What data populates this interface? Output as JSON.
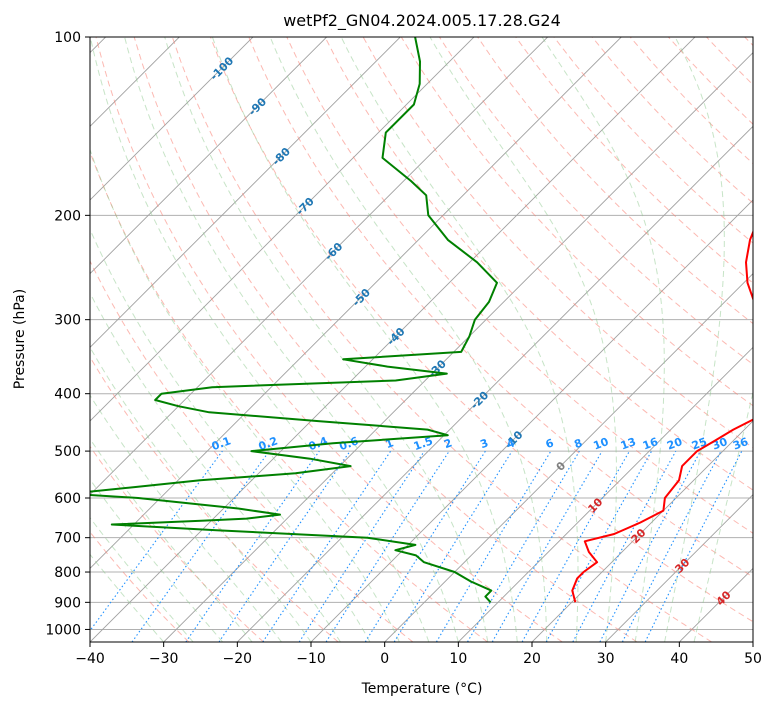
{
  "chart_data": {
    "type": "line",
    "title": "wetPf2_GN04.2024.005.17.28.G24",
    "xlabel": "Temperature (°C)",
    "ylabel": "Pressure (hPa)",
    "xlim": [
      -40,
      50
    ],
    "ylim": [
      1050,
      100
    ],
    "y_scale": "log",
    "skew": true,
    "grid": true,
    "x_ticks": [
      -40,
      -30,
      -20,
      -10,
      0,
      10,
      20,
      30,
      40,
      50
    ],
    "x_tick_labels": [
      "−40",
      "−30",
      "−20",
      "−10",
      "0",
      "10",
      "20",
      "30",
      "40",
      "50"
    ],
    "y_ticks": [
      100,
      200,
      300,
      400,
      500,
      600,
      700,
      800,
      900,
      1000
    ],
    "y_tick_labels": [
      "100",
      "200",
      "300",
      "400",
      "500",
      "600",
      "700",
      "800",
      "900",
      "1000"
    ],
    "colors": {
      "temperature": "#ff0000",
      "dewpoint": "#008000",
      "isotherm": "#a0a0a0",
      "dry_adiabat": "#fa8072",
      "moist_adiabat": "#8fc98f",
      "mixing_ratio": "#1e90ff",
      "isotherm_label": "#1f77b4",
      "isotherm_label_warm": "#d62728",
      "isotherm_label_zero": "#808080"
    },
    "isotherm_labels": [
      {
        "text": "-100",
        "value": -100,
        "pressure": 113
      },
      {
        "text": "-90",
        "value": -90,
        "pressure": 131
      },
      {
        "text": "-80",
        "value": -80,
        "pressure": 159
      },
      {
        "text": "-70",
        "value": -70,
        "pressure": 193
      },
      {
        "text": "-60",
        "value": -60,
        "pressure": 230
      },
      {
        "text": "-50",
        "value": -50,
        "pressure": 275
      },
      {
        "text": "-40",
        "value": -40,
        "pressure": 320
      },
      {
        "text": "-30",
        "value": -30,
        "pressure": 363
      },
      {
        "text": "-20",
        "value": -20,
        "pressure": 410
      },
      {
        "text": "-10",
        "value": -10,
        "pressure": 478
      },
      {
        "text": "0",
        "value": 0,
        "pressure": 530
      },
      {
        "text": "10",
        "value": 10,
        "pressure": 617
      },
      {
        "text": "20",
        "value": 20,
        "pressure": 695
      },
      {
        "text": "30",
        "value": 30,
        "pressure": 780
      },
      {
        "text": "40",
        "value": 40,
        "pressure": 885
      }
    ],
    "mixing_ratio_labels": [
      "0.1",
      "0.2",
      "0.4",
      "0.6",
      "1",
      "1.5",
      "2",
      "3",
      "4",
      "6",
      "8",
      "10",
      "13",
      "16",
      "20",
      "25",
      "30",
      "36"
    ],
    "mixing_ratio_values": [
      0.1,
      0.2,
      0.4,
      0.6,
      1,
      1.5,
      2,
      3,
      4,
      6,
      8,
      10,
      13,
      16,
      20,
      25,
      30,
      36
    ],
    "series": [
      {
        "name": "",
        "role": "temperature",
        "pressure": [
          900,
          860,
          820,
          800,
          770,
          740,
          710,
          690,
          660,
          630,
          600,
          560,
          530,
          500,
          480,
          460,
          440,
          420,
          400,
          380,
          360,
          340,
          320,
          300,
          280,
          260,
          240,
          220,
          200,
          180,
          170,
          160,
          150,
          140,
          130,
          120,
          115,
          110,
          105,
          100
        ],
        "temperature": [
          20.5,
          18.5,
          17.5,
          17.5,
          18.0,
          15.5,
          13.5,
          16.5,
          18.5,
          20.0,
          18.5,
          18.0,
          16.5,
          16.5,
          17.5,
          18.5,
          20.0,
          21.5,
          22.0,
          21.5,
          19.5,
          16.0,
          12.0,
          8.0,
          4.0,
          0.5,
          -2.5,
          -5.0,
          -7.0,
          -9.5,
          -10.0,
          -10.0,
          -11.0,
          -12.0,
          -14.0,
          -15.5,
          -15.0,
          -13.5,
          -12.0,
          -10.0
        ]
      },
      {
        "name": "",
        "role": "dewpoint",
        "pressure": [
          900,
          880,
          860,
          830,
          800,
          770,
          750,
          735,
          720,
          700,
          680,
          665,
          655,
          650,
          640,
          625,
          600,
          590,
          575,
          560,
          545,
          530,
          515,
          500,
          485,
          470,
          460,
          445,
          430,
          420,
          410,
          400,
          390,
          380,
          370,
          360,
          350,
          340,
          320,
          300,
          280,
          260,
          240,
          220,
          200,
          185,
          175,
          160,
          145,
          130,
          120,
          110,
          100
        ],
        "temperature": [
          9.0,
          7.5,
          7.5,
          3.5,
          0.0,
          -5.5,
          -7.5,
          -11.0,
          -9.0,
          -16.5,
          -38.0,
          -53.0,
          -41.0,
          -35.5,
          -31.5,
          -38.0,
          -53.0,
          -63.0,
          -55.0,
          -47.0,
          -35.0,
          -28.5,
          -35.0,
          -44.0,
          -34.0,
          -19.5,
          -23.0,
          -39.0,
          -55.0,
          -60.0,
          -64.0,
          -64.0,
          -58.0,
          -34.0,
          -28.0,
          -37.0,
          -44.0,
          -29.0,
          -30.0,
          -31.5,
          -32.0,
          -33.5,
          -39.0,
          -46.0,
          -52.0,
          -55.0,
          -59.0,
          -66.0,
          -69.0,
          -69.0,
          -71.0,
          -74.0,
          -78.0
        ]
      }
    ]
  }
}
